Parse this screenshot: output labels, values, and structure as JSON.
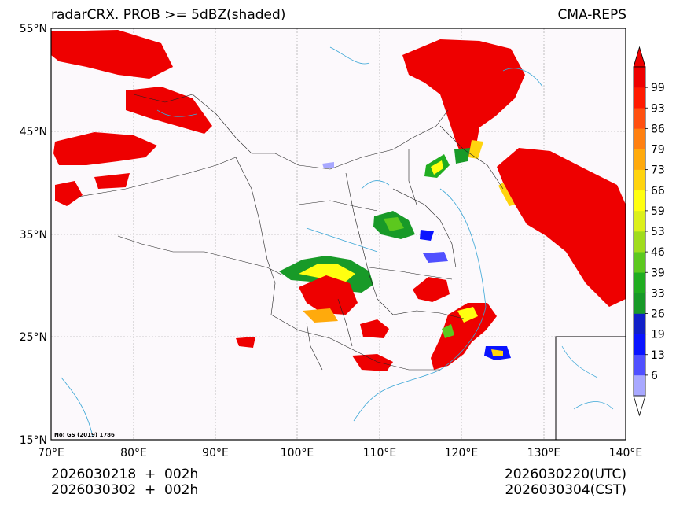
{
  "header": {
    "title": "radarCRX. PROB >= 5dBZ(shaded)",
    "model": "CMA-REPS"
  },
  "map": {
    "lat_labels": [
      "55°N",
      "45°N",
      "35°N",
      "25°N",
      "15°N"
    ],
    "lon_labels": [
      "70°E",
      "80°E",
      "90°E",
      "100°E",
      "110°E",
      "120°E",
      "130°E",
      "140°E"
    ],
    "review_number": "No: GS (2019) 1786"
  },
  "colorbar": {
    "labels": [
      "6",
      "13",
      "19",
      "26",
      "33",
      "39",
      "46",
      "53",
      "59",
      "66",
      "73",
      "79",
      "86",
      "93",
      "99"
    ],
    "colors": [
      "#a8a8ff",
      "#5050ff",
      "#0a14ff",
      "#1020c8",
      "#189a28",
      "#20ad20",
      "#5cc81e",
      "#a0dc1c",
      "#dcf01a",
      "#ffff10",
      "#ffd40e",
      "#ffaa0c",
      "#ff8010",
      "#ff5010",
      "#ff1a00",
      "#ee0000"
    ]
  },
  "footer": {
    "init_utc": "2026030218  +  002h",
    "init_cst": "2026030302  +  002h",
    "valid_utc": "2026030220(UTC)",
    "valid_cst": "2026030304(CST)"
  }
}
